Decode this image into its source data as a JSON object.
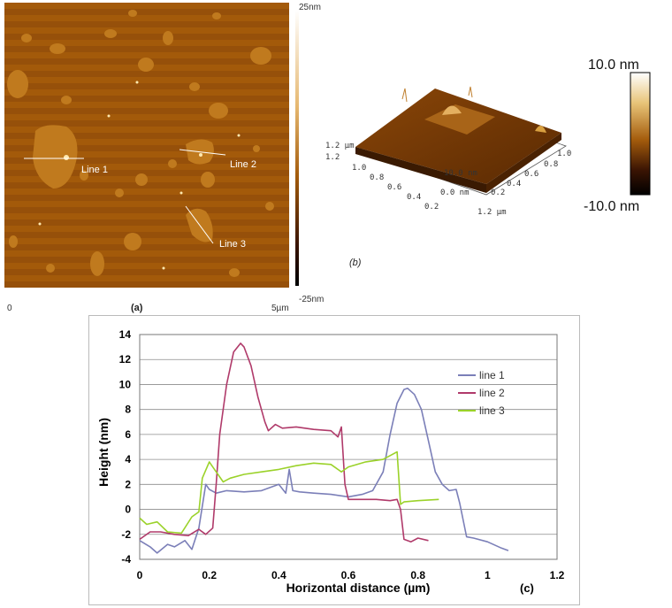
{
  "panel_a": {
    "caption": "(a)",
    "scale_min": "0",
    "scale_max": "5µm",
    "colorbar_top": "25nm",
    "colorbar_bottom": "-25nm",
    "line_labels": [
      "Line 1",
      "Line 2",
      "Line 3"
    ],
    "colors": {
      "background": "#9a5208",
      "feature": "#c07a1e",
      "line": "#ffffff"
    }
  },
  "panel_b": {
    "caption": "(b)",
    "axis_tick_labels_left": [
      "1.2 µm",
      "1.2",
      "1.0",
      "0.8",
      "0.6",
      "0.4",
      "0.2"
    ],
    "axis_tick_labels_right": [
      "0.2",
      "0.4",
      "0.6",
      "0.8",
      "1.0",
      "1.2 µm"
    ],
    "axis_tick_labels_z": [
      "10.0 nm",
      "0.0 nm"
    ],
    "colors": {
      "surface": "#7a3a05",
      "feature": "#d8a040"
    }
  },
  "colorbar_b": {
    "max_label": "10.0 nm",
    "min_label": "-10.0 nm",
    "colors": [
      "#ffffff",
      "#e8c478",
      "#a45c0c",
      "#3a1403",
      "#000000"
    ]
  },
  "chart_data": {
    "type": "line",
    "caption": "(c)",
    "xlabel": "Horizontal distance (µm)",
    "ylabel": "Height (nm)",
    "xlim": [
      0,
      1.2
    ],
    "ylim": [
      -4,
      14
    ],
    "xticks": [
      0,
      0.2,
      0.4,
      0.6,
      0.8,
      1,
      1.2
    ],
    "xtick_labels": [
      "0",
      "0.2",
      "0.4",
      "0.6",
      "0.8",
      "1",
      "1.2"
    ],
    "yticks": [
      -4,
      -2,
      0,
      2,
      4,
      6,
      8,
      10,
      12,
      14
    ],
    "ytick_labels": [
      "-4",
      "-2",
      "0",
      "2",
      "4",
      "6",
      "8",
      "10",
      "12",
      "14"
    ],
    "grid": true,
    "legend_position": "right",
    "series": [
      {
        "name": "line 1",
        "color": "#7b7fb8",
        "x": [
          0,
          0.03,
          0.05,
          0.08,
          0.1,
          0.13,
          0.15,
          0.17,
          0.19,
          0.2,
          0.22,
          0.25,
          0.3,
          0.35,
          0.4,
          0.42,
          0.43,
          0.44,
          0.46,
          0.5,
          0.55,
          0.6,
          0.64,
          0.67,
          0.7,
          0.72,
          0.74,
          0.76,
          0.77,
          0.79,
          0.81,
          0.83,
          0.85,
          0.87,
          0.89,
          0.91,
          0.92,
          0.94,
          0.96,
          1.0,
          1.04,
          1.06
        ],
        "y": [
          -2.5,
          -3.0,
          -3.5,
          -2.8,
          -3.0,
          -2.5,
          -3.2,
          -1.5,
          2.0,
          1.6,
          1.3,
          1.5,
          1.4,
          1.5,
          2.0,
          1.3,
          3.2,
          1.5,
          1.4,
          1.3,
          1.2,
          1.0,
          1.2,
          1.5,
          3.0,
          6.0,
          8.5,
          9.6,
          9.7,
          9.2,
          8.0,
          5.5,
          3.0,
          2.0,
          1.5,
          1.6,
          0.5,
          -2.2,
          -2.3,
          -2.6,
          -3.1,
          -3.3
        ]
      },
      {
        "name": "line 2",
        "color": "#b03a6a",
        "x": [
          0,
          0.03,
          0.06,
          0.1,
          0.14,
          0.17,
          0.19,
          0.21,
          0.22,
          0.23,
          0.25,
          0.27,
          0.29,
          0.3,
          0.32,
          0.34,
          0.36,
          0.37,
          0.39,
          0.41,
          0.45,
          0.5,
          0.55,
          0.57,
          0.58,
          0.59,
          0.6,
          0.63,
          0.68,
          0.72,
          0.74,
          0.75,
          0.76,
          0.78,
          0.8,
          0.83
        ],
        "y": [
          -2.4,
          -1.8,
          -1.8,
          -2.0,
          -2.1,
          -1.6,
          -2.0,
          -1.5,
          2.0,
          6.0,
          10.0,
          12.6,
          13.3,
          13.0,
          11.5,
          9.0,
          7.0,
          6.3,
          6.8,
          6.5,
          6.6,
          6.4,
          6.3,
          5.8,
          6.6,
          2.0,
          0.8,
          0.8,
          0.8,
          0.7,
          0.8,
          0.0,
          -2.4,
          -2.6,
          -2.3,
          -2.5
        ]
      },
      {
        "name": "line 3",
        "color": "#9bd22a",
        "x": [
          0,
          0.02,
          0.05,
          0.08,
          0.12,
          0.15,
          0.17,
          0.18,
          0.2,
          0.22,
          0.24,
          0.26,
          0.3,
          0.35,
          0.4,
          0.45,
          0.5,
          0.55,
          0.58,
          0.6,
          0.65,
          0.7,
          0.74,
          0.75,
          0.76,
          0.8,
          0.86
        ],
        "y": [
          -0.7,
          -1.2,
          -1.0,
          -1.8,
          -1.9,
          -0.6,
          -0.2,
          2.5,
          3.8,
          3.0,
          2.2,
          2.5,
          2.8,
          3.0,
          3.2,
          3.5,
          3.7,
          3.6,
          3.0,
          3.4,
          3.8,
          4.0,
          4.6,
          0.4,
          0.6,
          0.7,
          0.8
        ]
      }
    ]
  }
}
